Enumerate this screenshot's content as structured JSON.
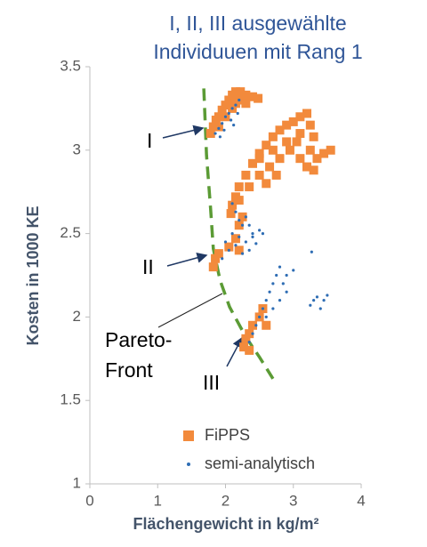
{
  "chart_data": {
    "type": "scatter",
    "title": [
      "I, II, III ausgewählte",
      "Individuuen mit Rang 1"
    ],
    "x_label": "Flächengewicht  in kg/m²",
    "y_label": "Kosten in 1000 KE",
    "xlim": [
      0,
      4
    ],
    "xticks": [
      0,
      1,
      2,
      3,
      4
    ],
    "ylim": [
      1,
      3.5
    ],
    "yticks": [
      1,
      1.5,
      2,
      2.5,
      3,
      3.5
    ],
    "legend": "lower right",
    "annotations": [
      "I",
      "II",
      "III",
      "Pareto-",
      "Front"
    ],
    "front": {
      "color": "#5b9b35",
      "x": [
        1.68,
        1.72,
        1.78,
        1.82,
        1.92,
        2.06,
        2.3,
        2.5,
        2.7
      ],
      "values": [
        3.37,
        2.97,
        2.65,
        2.41,
        2.22,
        2.06,
        1.88,
        1.76,
        1.63
      ]
    },
    "series": [
      {
        "name": "FiPPS",
        "color": "#f28a3c",
        "x": [
          1.78,
          1.82,
          1.86,
          1.9,
          1.95,
          2.0,
          2.05,
          2.1,
          2.15,
          2.22,
          2.3,
          2.4,
          2.48,
          2.2,
          2.1,
          2.0,
          1.9,
          2.3,
          2.15,
          2.08,
          2.1,
          2.15,
          2.2,
          2.3,
          2.4,
          2.5,
          2.6,
          2.7,
          2.8,
          2.9,
          3.0,
          3.1,
          3.2,
          2.2,
          2.35,
          2.5,
          2.65,
          2.8,
          2.95,
          3.05,
          2.5,
          2.7,
          2.9,
          3.1,
          3.25,
          3.35,
          3.45,
          3.55,
          3.3,
          3.2,
          3.3,
          3.25,
          3.1,
          2.75,
          2.6,
          1.82,
          1.85,
          1.9,
          2.05,
          2.15,
          2.2,
          2.25,
          2.2,
          2.27,
          2.3,
          2.35,
          2.4,
          2.5,
          2.55,
          2.6,
          2.35
        ],
        "values": [
          3.1,
          3.14,
          3.18,
          3.2,
          3.24,
          3.27,
          3.3,
          3.33,
          3.35,
          3.35,
          3.33,
          3.32,
          3.31,
          3.3,
          3.25,
          3.2,
          3.14,
          3.28,
          3.28,
          2.62,
          2.67,
          2.72,
          2.78,
          2.85,
          2.92,
          2.98,
          3.03,
          3.08,
          3.12,
          3.15,
          3.17,
          3.2,
          3.22,
          2.7,
          2.78,
          2.85,
          2.9,
          2.95,
          3.0,
          3.05,
          2.95,
          3.0,
          3.05,
          3.1,
          3.0,
          2.95,
          2.98,
          3.0,
          3.08,
          2.9,
          2.88,
          3.15,
          2.95,
          2.85,
          2.8,
          2.3,
          2.35,
          2.38,
          2.42,
          2.47,
          2.55,
          2.6,
          2.4,
          1.82,
          1.87,
          1.9,
          1.95,
          2.0,
          2.05,
          1.95,
          1.8
        ]
      },
      {
        "name": "semi-analytisch",
        "color": "#2e6db4",
        "x": [
          1.85,
          1.9,
          1.95,
          2.0,
          2.05,
          2.1,
          2.15,
          2.2,
          1.98,
          2.08,
          2.18,
          2.12,
          1.92,
          2.1,
          2.15,
          2.2,
          2.25,
          2.1,
          2.2,
          2.3,
          2.4,
          2.5,
          2.35,
          2.45,
          2.0,
          2.05,
          2.15,
          2.25,
          2.35,
          2.55,
          1.95,
          2.3,
          2.4,
          2.35,
          2.4,
          2.45,
          2.5,
          2.55,
          2.6,
          2.65,
          2.7,
          2.75,
          2.8,
          2.6,
          2.7,
          2.8,
          2.9,
          2.9,
          3.0,
          2.85,
          3.25,
          3.3,
          3.35,
          3.45,
          3.5,
          3.4,
          3.27
        ],
        "values": [
          3.1,
          3.13,
          3.16,
          3.2,
          3.22,
          3.25,
          3.27,
          3.3,
          3.12,
          3.18,
          3.22,
          3.15,
          3.08,
          2.68,
          2.63,
          2.58,
          2.55,
          2.5,
          2.48,
          2.45,
          2.5,
          2.52,
          2.55,
          2.44,
          2.45,
          2.4,
          2.43,
          2.38,
          2.4,
          2.5,
          2.35,
          2.6,
          2.48,
          1.85,
          1.9,
          1.95,
          2.0,
          2.05,
          2.1,
          2.15,
          2.2,
          2.25,
          2.3,
          2.0,
          2.05,
          2.1,
          2.15,
          2.25,
          2.28,
          2.2,
          2.07,
          2.1,
          2.12,
          2.1,
          2.13,
          2.05,
          2.39
        ]
      }
    ]
  }
}
